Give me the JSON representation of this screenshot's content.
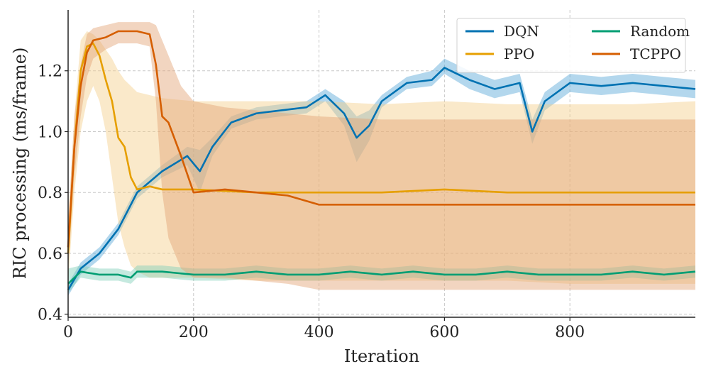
{
  "chart_data": {
    "type": "line",
    "title": "",
    "xlabel": "Iteration",
    "ylabel": "RIC processing (ms/frame)",
    "xlim": [
      0,
      1000
    ],
    "ylim": [
      0.39,
      1.4
    ],
    "xticks": [
      0,
      200,
      400,
      600,
      800
    ],
    "yticks": [
      0.4,
      0.6,
      0.8,
      1.0,
      1.2
    ],
    "xtick_labels": [
      "0",
      "200",
      "400",
      "600",
      "800"
    ],
    "ytick_labels": [
      "0.4",
      "0.6",
      "0.8",
      "1.0",
      "1.2"
    ],
    "grid": true,
    "legend_placement": "top-right",
    "series": [
      {
        "name": "DQN",
        "color": "#0072B2",
        "band_color": "#56a7d8",
        "x": [
          0,
          20,
          50,
          80,
          110,
          150,
          190,
          210,
          230,
          260,
          300,
          340,
          380,
          410,
          440,
          460,
          480,
          500,
          540,
          580,
          600,
          640,
          680,
          720,
          740,
          760,
          800,
          850,
          900,
          950,
          1000
        ],
        "y": [
          0.48,
          0.55,
          0.6,
          0.68,
          0.8,
          0.87,
          0.92,
          0.87,
          0.95,
          1.03,
          1.06,
          1.07,
          1.08,
          1.12,
          1.06,
          0.98,
          1.02,
          1.1,
          1.16,
          1.17,
          1.21,
          1.17,
          1.14,
          1.16,
          1.0,
          1.1,
          1.16,
          1.15,
          1.16,
          1.15,
          1.14
        ],
        "band_lower": [
          0.46,
          0.53,
          0.58,
          0.66,
          0.78,
          0.85,
          0.89,
          0.8,
          0.92,
          1.01,
          1.04,
          1.05,
          1.06,
          1.1,
          1.02,
          0.9,
          0.97,
          1.08,
          1.14,
          1.15,
          1.19,
          1.14,
          1.11,
          1.13,
          0.96,
          1.07,
          1.13,
          1.12,
          1.13,
          1.12,
          1.11
        ],
        "band_upper": [
          0.5,
          0.57,
          0.62,
          0.7,
          0.82,
          0.89,
          0.95,
          0.94,
          0.98,
          1.05,
          1.08,
          1.09,
          1.1,
          1.14,
          1.1,
          1.05,
          1.07,
          1.12,
          1.18,
          1.2,
          1.24,
          1.2,
          1.17,
          1.19,
          1.04,
          1.13,
          1.19,
          1.18,
          1.19,
          1.18,
          1.17
        ]
      },
      {
        "name": "PPO",
        "color": "#E69F00",
        "band_color": "#f5cf8a",
        "x": [
          0,
          10,
          20,
          30,
          40,
          50,
          60,
          70,
          80,
          90,
          100,
          110,
          130,
          150,
          200,
          300,
          400,
          500,
          600,
          700,
          800,
          900,
          1000
        ],
        "y": [
          0.6,
          0.95,
          1.2,
          1.28,
          1.29,
          1.25,
          1.17,
          1.1,
          0.98,
          0.95,
          0.85,
          0.81,
          0.82,
          0.81,
          0.81,
          0.8,
          0.8,
          0.8,
          0.81,
          0.8,
          0.8,
          0.8,
          0.8
        ],
        "band_lower": [
          0.5,
          0.8,
          1.0,
          1.1,
          1.15,
          1.1,
          1.0,
          0.85,
          0.7,
          0.62,
          0.56,
          0.54,
          0.52,
          0.52,
          0.52,
          0.51,
          0.51,
          0.51,
          0.51,
          0.51,
          0.5,
          0.5,
          0.5
        ],
        "band_upper": [
          0.7,
          1.05,
          1.3,
          1.33,
          1.32,
          1.3,
          1.27,
          1.24,
          1.2,
          1.17,
          1.15,
          1.13,
          1.12,
          1.11,
          1.1,
          1.1,
          1.1,
          1.09,
          1.1,
          1.09,
          1.09,
          1.09,
          1.1
        ]
      },
      {
        "name": "Random",
        "color": "#009E73",
        "band_color": "#7fcfb8",
        "x": [
          0,
          20,
          50,
          80,
          100,
          110,
          150,
          200,
          250,
          300,
          350,
          400,
          450,
          500,
          550,
          600,
          650,
          700,
          750,
          800,
          850,
          900,
          950,
          1000
        ],
        "y": [
          0.5,
          0.54,
          0.53,
          0.53,
          0.52,
          0.54,
          0.54,
          0.53,
          0.53,
          0.54,
          0.53,
          0.53,
          0.54,
          0.53,
          0.54,
          0.53,
          0.53,
          0.54,
          0.53,
          0.53,
          0.53,
          0.54,
          0.53,
          0.54
        ],
        "band_lower": [
          0.47,
          0.52,
          0.51,
          0.51,
          0.5,
          0.52,
          0.52,
          0.51,
          0.51,
          0.52,
          0.51,
          0.51,
          0.52,
          0.51,
          0.52,
          0.51,
          0.51,
          0.52,
          0.51,
          0.51,
          0.51,
          0.52,
          0.51,
          0.52
        ],
        "band_upper": [
          0.55,
          0.56,
          0.55,
          0.55,
          0.54,
          0.56,
          0.56,
          0.55,
          0.55,
          0.56,
          0.55,
          0.55,
          0.56,
          0.55,
          0.56,
          0.55,
          0.55,
          0.56,
          0.55,
          0.55,
          0.55,
          0.56,
          0.55,
          0.56
        ]
      },
      {
        "name": "TCPPO",
        "color": "#D55E00",
        "band_color": "#e3a273",
        "x": [
          0,
          10,
          20,
          30,
          40,
          60,
          80,
          100,
          110,
          130,
          140,
          150,
          160,
          180,
          200,
          250,
          300,
          350,
          400,
          500,
          600,
          700,
          800,
          900,
          1000
        ],
        "y": [
          0.62,
          0.95,
          1.15,
          1.26,
          1.3,
          1.31,
          1.33,
          1.33,
          1.33,
          1.32,
          1.22,
          1.05,
          1.03,
          0.92,
          0.8,
          0.81,
          0.8,
          0.79,
          0.76,
          0.76,
          0.76,
          0.76,
          0.76,
          0.76,
          0.76
        ],
        "band_lower": [
          0.55,
          0.85,
          1.05,
          1.18,
          1.24,
          1.27,
          1.29,
          1.29,
          1.29,
          1.28,
          1.1,
          0.8,
          0.65,
          0.55,
          0.52,
          0.52,
          0.51,
          0.5,
          0.48,
          0.48,
          0.48,
          0.48,
          0.48,
          0.48,
          0.48
        ],
        "band_upper": [
          0.7,
          1.05,
          1.22,
          1.32,
          1.34,
          1.35,
          1.36,
          1.36,
          1.36,
          1.36,
          1.35,
          1.3,
          1.25,
          1.15,
          1.1,
          1.08,
          1.07,
          1.06,
          1.05,
          1.04,
          1.04,
          1.04,
          1.04,
          1.04,
          1.04
        ]
      }
    ]
  }
}
